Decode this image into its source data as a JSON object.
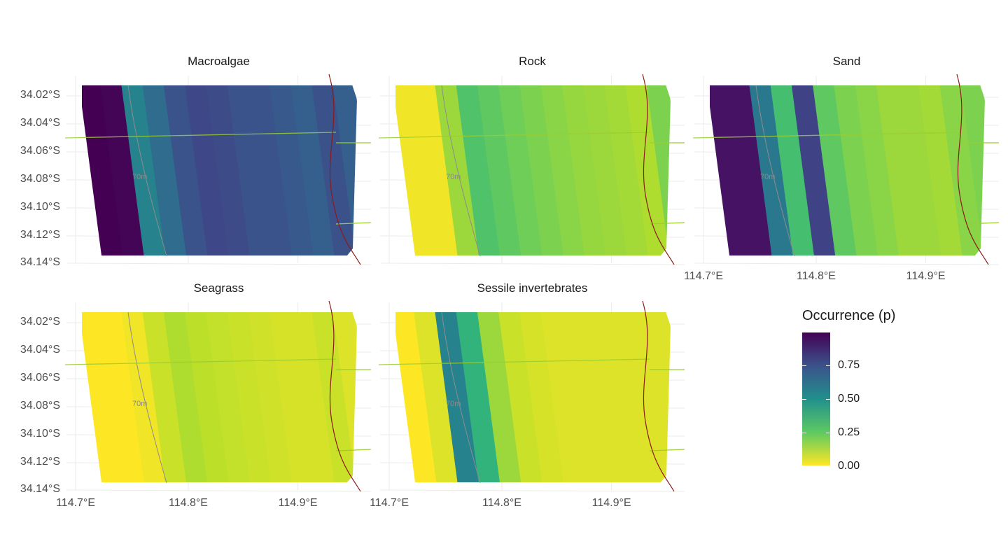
{
  "panels": [
    {
      "title": "Macroalgae",
      "profile": [
        1.0,
        0.99,
        0.55,
        0.65,
        0.74,
        0.78,
        0.77,
        0.74,
        0.74,
        0.72,
        0.7,
        0.75,
        0.7
      ]
    },
    {
      "title": "Rock",
      "profile": [
        0.02,
        0.02,
        0.15,
        0.28,
        0.25,
        0.22,
        0.2,
        0.18,
        0.16,
        0.15,
        0.14,
        0.12,
        0.2
      ]
    },
    {
      "title": "Sand",
      "profile": [
        0.95,
        0.95,
        0.6,
        0.3,
        0.8,
        0.25,
        0.2,
        0.18,
        0.15,
        0.15,
        0.14,
        0.18,
        0.2
      ]
    },
    {
      "title": "Seagrass",
      "profile": [
        0.0,
        0.0,
        0.02,
        0.08,
        0.12,
        0.1,
        0.09,
        0.08,
        0.07,
        0.06,
        0.06,
        0.08,
        0.05
      ]
    },
    {
      "title": "Sessile invertebrates",
      "profile": [
        0.0,
        0.05,
        0.55,
        0.35,
        0.15,
        0.08,
        0.06,
        0.05,
        0.05,
        0.05,
        0.05,
        0.05,
        0.05
      ]
    }
  ],
  "axes": {
    "y_ticks": [
      "34.02°S",
      "34.04°S",
      "34.06°S",
      "34.08°S",
      "34.10°S",
      "34.12°S",
      "34.14°S"
    ],
    "x_ticks": [
      "114.7°E",
      "114.8°E",
      "114.9°E"
    ]
  },
  "contour_label": "70m",
  "legend": {
    "title": "Occurrence (p)",
    "labels": [
      "0.75",
      "0.50",
      "0.25",
      "0.00"
    ],
    "values": [
      0.75,
      0.5,
      0.25,
      0.0
    ],
    "scale": "viridis"
  },
  "colors": {
    "viridis": [
      "#440154",
      "#482878",
      "#3e4989",
      "#31688e",
      "#26828e",
      "#1f9e89",
      "#35b779",
      "#6ece58",
      "#b5de2b",
      "#fde725"
    ],
    "contour_line": "#8c8c8c",
    "coast_line": "#8b1a1a",
    "transect_line": "#9acd32"
  }
}
